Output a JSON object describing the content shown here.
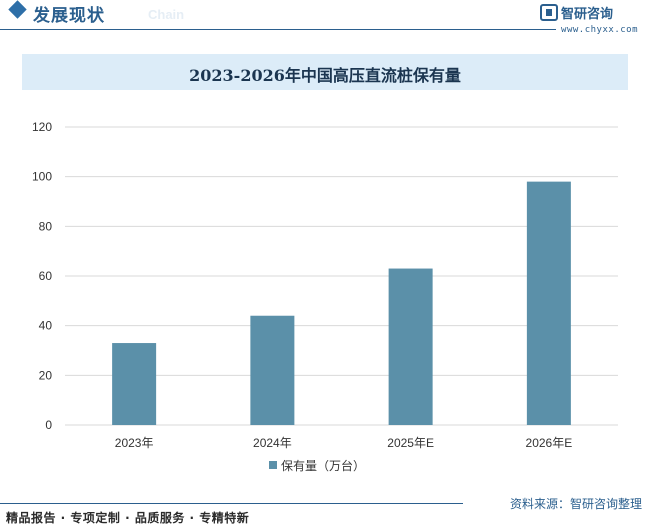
{
  "header": {
    "title": "发展现状",
    "ghost_text": "Chain",
    "brand_name": "智研咨询",
    "brand_url": "www.chyxx.com"
  },
  "footer": {
    "tagline": "精品报告 · 专项定制 · 品质服务 · 专精特新",
    "source": "资料来源：智研咨询整理"
  },
  "colors": {
    "bar": "#5b90a9",
    "grid": "#d9d9d9",
    "accent": "#2b5f8e",
    "title_band": "#dcecf8"
  },
  "chart_data": {
    "type": "bar",
    "title": "2023-2026年中国高压直流桩保有量",
    "categories": [
      "2023年",
      "2024年",
      "2025年E",
      "2026年E"
    ],
    "series": [
      {
        "name": "保有量（万台）",
        "values": [
          33,
          44,
          63,
          98
        ]
      }
    ],
    "ylim": [
      0,
      120
    ],
    "yticks": [
      0,
      20,
      40,
      60,
      80,
      100,
      120
    ],
    "grid": true,
    "legend": "bottom"
  }
}
